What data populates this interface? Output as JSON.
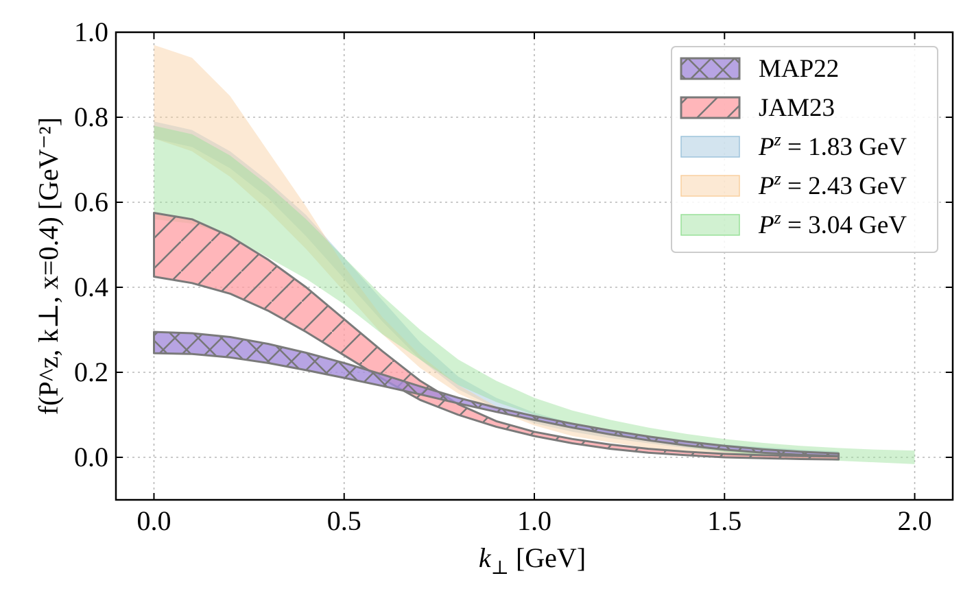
{
  "chart_data": {
    "type": "area",
    "xlabel": {
      "symbol": "k",
      "sub": "⊥",
      "unit": " [GeV]"
    },
    "ylabel": {
      "main": "f(P^z, k⊥, x=0.4) [GeV⁻²]"
    },
    "xlim": [
      -0.1,
      2.1
    ],
    "ylim": [
      -0.1,
      1.0
    ],
    "xticks": [
      "0.0",
      "0.5",
      "1.0",
      "1.5",
      "2.0"
    ],
    "yticks": [
      "0.0",
      "0.2",
      "0.4",
      "0.6",
      "0.8",
      "1.0"
    ],
    "grid": true,
    "legend_position": "top-right",
    "series": [
      {
        "name": "P^z = 1.83 GeV",
        "legend": {
          "sym": "P",
          "sup": "z",
          "rest": " = 1.83 GeV"
        },
        "color": "#9ec3dc",
        "x": [
          0.0,
          0.1,
          0.2,
          0.3,
          0.4,
          0.5,
          0.6,
          0.7,
          0.8,
          0.9,
          1.0,
          1.1,
          1.2,
          1.3,
          1.4,
          1.5,
          1.6,
          1.7,
          1.8
        ],
        "lower": [
          0.75,
          0.73,
          0.68,
          0.61,
          0.52,
          0.42,
          0.32,
          0.23,
          0.16,
          0.115,
          0.08,
          0.06,
          0.045,
          0.033,
          0.022,
          0.012,
          0.006,
          0.002,
          -0.002
        ],
        "upper": [
          0.79,
          0.77,
          0.72,
          0.65,
          0.57,
          0.47,
          0.37,
          0.27,
          0.19,
          0.14,
          0.105,
          0.08,
          0.063,
          0.05,
          0.04,
          0.03,
          0.024,
          0.018,
          0.014
        ]
      },
      {
        "name": "P^z = 2.43 GeV",
        "legend": {
          "sym": "P",
          "sup": "z",
          "rest": " = 2.43 GeV"
        },
        "color": "#f9cf9f",
        "x": [
          0.0,
          0.1,
          0.2,
          0.3,
          0.4,
          0.5,
          0.6,
          0.7,
          0.8,
          0.9,
          1.0,
          1.1,
          1.2,
          1.3,
          1.4,
          1.5,
          1.6,
          1.7,
          1.8
        ],
        "lower": [
          0.75,
          0.72,
          0.66,
          0.58,
          0.49,
          0.39,
          0.29,
          0.21,
          0.15,
          0.11,
          0.075,
          0.05,
          0.035,
          0.022,
          0.012,
          0.004,
          -0.002,
          -0.004,
          -0.006
        ],
        "upper": [
          0.97,
          0.94,
          0.85,
          0.72,
          0.59,
          0.45,
          0.33,
          0.24,
          0.17,
          0.12,
          0.09,
          0.07,
          0.055,
          0.045,
          0.035,
          0.027,
          0.02,
          0.015,
          0.01
        ]
      },
      {
        "name": "P^z = 3.04 GeV",
        "legend": {
          "sym": "P",
          "sup": "z",
          "rest": " = 3.04 GeV"
        },
        "color": "#98e098",
        "x": [
          0.0,
          0.1,
          0.2,
          0.3,
          0.4,
          0.5,
          0.6,
          0.7,
          0.8,
          0.9,
          1.0,
          1.1,
          1.2,
          1.3,
          1.4,
          1.5,
          1.6,
          1.7,
          1.8,
          1.9,
          2.0
        ],
        "lower": [
          0.56,
          0.55,
          0.52,
          0.47,
          0.42,
          0.36,
          0.29,
          0.23,
          0.17,
          0.13,
          0.1,
          0.075,
          0.055,
          0.038,
          0.025,
          0.013,
          0.004,
          -0.003,
          -0.008,
          -0.012,
          -0.016
        ],
        "upper": [
          0.78,
          0.76,
          0.71,
          0.64,
          0.56,
          0.47,
          0.38,
          0.3,
          0.23,
          0.18,
          0.14,
          0.11,
          0.088,
          0.07,
          0.055,
          0.043,
          0.034,
          0.027,
          0.022,
          0.018,
          0.016
        ]
      },
      {
        "name": "JAM23",
        "legend": {
          "text": "JAM23"
        },
        "color": "#ff9ea3",
        "x": [
          0.0,
          0.1,
          0.2,
          0.3,
          0.4,
          0.5,
          0.6,
          0.7,
          0.8,
          0.9,
          1.0,
          1.1,
          1.2,
          1.3,
          1.4,
          1.5,
          1.6,
          1.7,
          1.8
        ],
        "lower": [
          0.425,
          0.41,
          0.385,
          0.345,
          0.295,
          0.24,
          0.185,
          0.135,
          0.1,
          0.072,
          0.05,
          0.033,
          0.02,
          0.011,
          0.005,
          0.0,
          -0.002,
          -0.004,
          -0.005
        ],
        "upper": [
          0.575,
          0.56,
          0.52,
          0.465,
          0.4,
          0.325,
          0.25,
          0.18,
          0.125,
          0.085,
          0.06,
          0.043,
          0.03,
          0.02,
          0.013,
          0.008,
          0.005,
          0.003,
          0.002
        ]
      },
      {
        "name": "MAP22",
        "legend": {
          "text": "MAP22"
        },
        "color": "#a58ddc",
        "x": [
          0.0,
          0.1,
          0.2,
          0.3,
          0.4,
          0.5,
          0.6,
          0.7,
          0.8,
          0.9,
          1.0,
          1.1,
          1.2,
          1.3,
          1.4,
          1.5,
          1.6,
          1.7,
          1.8
        ],
        "lower": [
          0.245,
          0.243,
          0.235,
          0.222,
          0.205,
          0.187,
          0.168,
          0.148,
          0.127,
          0.107,
          0.088,
          0.07,
          0.054,
          0.04,
          0.028,
          0.018,
          0.011,
          0.006,
          0.003
        ],
        "upper": [
          0.295,
          0.292,
          0.283,
          0.267,
          0.246,
          0.222,
          0.195,
          0.167,
          0.14,
          0.117,
          0.097,
          0.079,
          0.063,
          0.049,
          0.037,
          0.027,
          0.019,
          0.013,
          0.009
        ]
      }
    ]
  }
}
